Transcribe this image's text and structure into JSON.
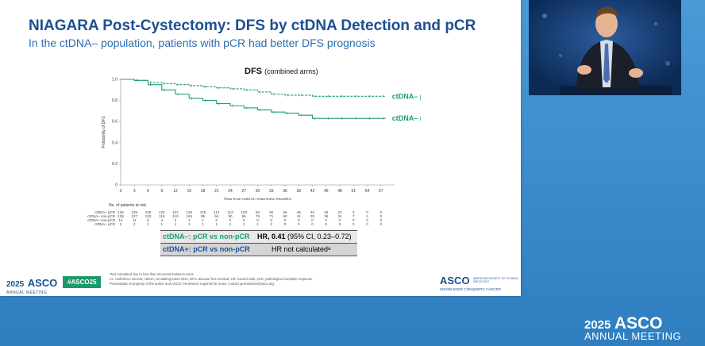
{
  "slide": {
    "title": "NIAGARA Post-Cystectomy: DFS by ctDNA Detection and pCR",
    "subtitle": "In the ctDNA– population, patients with pCR had better DFS prognosis",
    "chart_title": "DFS",
    "chart_title_sub": "(combined arms)"
  },
  "chart_data": {
    "type": "line",
    "title": "DFS (combined arms)",
    "xlabel": "Time from radical cystectomy (months)",
    "ylabel": "Probability of DFS",
    "xlim": [
      0,
      60
    ],
    "ylim": [
      0,
      1.0
    ],
    "x_ticks": [
      "0",
      "3",
      "6",
      "9",
      "12",
      "15",
      "18",
      "21",
      "24",
      "27",
      "30",
      "33",
      "36",
      "39",
      "42",
      "45",
      "48",
      "51",
      "54",
      "57"
    ],
    "y_ticks": [
      "0",
      "0.2",
      "0.4",
      "0.6",
      "0.8",
      "1.0"
    ],
    "series": [
      {
        "name": "ctDNA– pCR",
        "color": "#1e9e6e",
        "x": [
          0,
          3,
          6,
          9,
          12,
          15,
          18,
          21,
          24,
          27,
          30,
          33,
          36,
          39,
          42,
          45,
          48,
          51,
          54,
          57
        ],
        "y": [
          1.0,
          0.99,
          0.97,
          0.96,
          0.95,
          0.94,
          0.93,
          0.92,
          0.91,
          0.9,
          0.88,
          0.86,
          0.85,
          0.85,
          0.84,
          0.84,
          0.84,
          0.84,
          0.84,
          0.84
        ]
      },
      {
        "name": "ctDNA– non-pCR",
        "color": "#1e9e6e",
        "x": [
          0,
          3,
          6,
          9,
          12,
          15,
          18,
          21,
          24,
          27,
          30,
          33,
          36,
          39,
          42,
          45,
          48,
          51,
          54,
          57
        ],
        "y": [
          1.0,
          0.99,
          0.95,
          0.9,
          0.86,
          0.82,
          0.8,
          0.77,
          0.75,
          0.73,
          0.71,
          0.69,
          0.68,
          0.66,
          0.63,
          0.63,
          0.63,
          0.63,
          0.63,
          0.63
        ]
      }
    ],
    "legend_placement": "right"
  },
  "risk_table": {
    "label": "No. of patients at risk",
    "rows": [
      {
        "label": "ctDNA– pCR",
        "values": [
          "125",
          "125",
          "125",
          "123",
          "122",
          "118",
          "115",
          "113",
          "112",
          "109",
          "94",
          "80",
          "66",
          "48",
          "40",
          "26",
          "23",
          "3",
          "0",
          "0"
        ]
      },
      {
        "label": "ctDNA– non-pCR",
        "values": [
          "128",
          "127",
          "123",
          "116",
          "110",
          "104",
          "99",
          "94",
          "90",
          "86",
          "76",
          "71",
          "60",
          "41",
          "35",
          "26",
          "24",
          "7",
          "1",
          "0"
        ]
      },
      {
        "label": "ctDNA+ non-pCR",
        "values": [
          "14",
          "11",
          "8",
          "4",
          "2",
          "1",
          "1",
          "0",
          "0",
          "0",
          "0",
          "0",
          "0",
          "0",
          "0",
          "0",
          "0",
          "0",
          "0",
          "0"
        ]
      },
      {
        "label": "ctDNA+ pCR",
        "values": [
          "2",
          "2",
          "1",
          "1",
          "1",
          "1",
          "1",
          "1",
          "1",
          "1",
          "1",
          "0",
          "0",
          "0",
          "0",
          "0",
          "0",
          "0",
          "0",
          "0"
        ]
      }
    ]
  },
  "hr_table": {
    "row1_left": "ctDNA–: pCR vs non-pCR",
    "row1_hr": "HR, 0.41",
    "row1_ci": " (95% CI, 0.23–0.72)",
    "row2_left": "ctDNA+: pCR vs non-pCR",
    "row2_right": "HR not calculatedᵃ"
  },
  "footer": {
    "asco_year": "2025",
    "asco_name": "ASCO",
    "asco_meeting": "ANNUAL MEETING",
    "hashtag": "#ASCO25",
    "footnote1": "ᵃNot calculated due to less than 20 events between arms.",
    "footnote2": "CI, confidence interval; ctDNA, circulating tumor DNA; DFS, disease-free survival; HR, hazard ratio; pCR, pathological complete response.",
    "footnote3": "Presentation is property of the author and ASCO. Permission required for reuse; contact permissions@asco.org.",
    "right_logo": "ASCO",
    "right_society": "AMERICAN SOCIETY OF CLINICAL ONCOLOGY",
    "right_tagline": "KNOWLEDGE CONQUERS CANCER"
  },
  "bottom_right_logo": {
    "year": "2025",
    "name": "ASCO",
    "meeting": "ANNUAL MEETING"
  },
  "colors": {
    "title": "#1d4f91",
    "subtitle": "#2b6cb0",
    "curve": "#1e9e6e",
    "background": "#3f8fcf"
  }
}
